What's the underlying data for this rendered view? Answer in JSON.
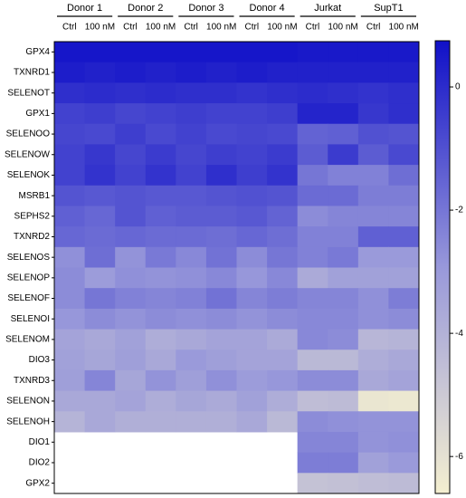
{
  "chart_data": {
    "type": "heatmap",
    "groups": [
      "Donor 1",
      "Donor 2",
      "Donor 3",
      "Donor 4",
      "Jurkat",
      "SupT1"
    ],
    "columns": [
      "Ctrl",
      "100 nM",
      "Ctrl",
      "100 nM",
      "Ctrl",
      "100 nM",
      "Ctrl",
      "100 nM",
      "Ctrl",
      "100 nM",
      "Ctrl",
      "100 nM"
    ],
    "rows": [
      "GPX4",
      "TXNRD1",
      "SELENOT",
      "GPX1",
      "SELENOO",
      "SELENOW",
      "SELENOK",
      "MSRB1",
      "SEPHS2",
      "TXNRD2",
      "SELENOS",
      "SELENOP",
      "SELENOF",
      "SELENOI",
      "SELENOM",
      "DIO3",
      "TXNRD3",
      "SELENON",
      "SELENOH",
      "DIO1",
      "DIO2",
      "GPX2"
    ],
    "values": [
      [
        0.6,
        0.6,
        0.6,
        0.6,
        0.6,
        0.6,
        0.6,
        0.6,
        0.5,
        0.5,
        0.5,
        0.5
      ],
      [
        0.4,
        0.3,
        0.4,
        0.3,
        0.4,
        0.3,
        0.4,
        0.3,
        0.3,
        0.3,
        0.3,
        0.3
      ],
      [
        -0.1,
        0.0,
        -0.1,
        0.0,
        -0.1,
        -0.1,
        -0.2,
        -0.1,
        0.0,
        -0.1,
        -0.2,
        -0.1
      ],
      [
        -0.6,
        -0.5,
        -0.7,
        -0.6,
        -0.5,
        -0.6,
        -0.6,
        -0.5,
        0.2,
        0.2,
        -0.3,
        -0.1
      ],
      [
        -0.7,
        -0.8,
        -0.5,
        -0.8,
        -0.6,
        -0.8,
        -0.7,
        -0.8,
        -1.5,
        -1.4,
        -1.0,
        -1.1
      ],
      [
        -0.6,
        -0.3,
        -0.7,
        -0.4,
        -0.7,
        -0.5,
        -0.6,
        -0.4,
        -1.3,
        -0.4,
        -1.3,
        -0.8
      ],
      [
        -0.6,
        -0.2,
        -0.6,
        -0.2,
        -0.6,
        -0.1,
        -0.5,
        -0.2,
        -2.0,
        -2.3,
        -2.3,
        -1.8
      ],
      [
        -1.1,
        -1.2,
        -1.1,
        -1.2,
        -1.2,
        -1.1,
        -1.0,
        -1.1,
        -1.7,
        -1.7,
        -2.2,
        -2.2
      ],
      [
        -1.4,
        -1.6,
        -1.1,
        -1.4,
        -1.3,
        -1.3,
        -1.2,
        -1.5,
        -2.6,
        -2.4,
        -2.4,
        -2.4
      ],
      [
        -1.6,
        -1.7,
        -1.6,
        -1.7,
        -1.7,
        -1.8,
        -1.6,
        -1.8,
        -2.3,
        -2.3,
        -1.4,
        -1.4
      ],
      [
        -2.7,
        -1.8,
        -2.8,
        -2.1,
        -2.5,
        -1.9,
        -2.6,
        -2.0,
        -2.3,
        -2.1,
        -3.0,
        -3.0
      ],
      [
        -2.6,
        -3.1,
        -2.7,
        -2.8,
        -2.7,
        -2.5,
        -2.9,
        -2.5,
        -3.7,
        -3.3,
        -3.3,
        -3.3
      ],
      [
        -2.6,
        -2.0,
        -2.3,
        -2.4,
        -2.3,
        -1.9,
        -2.4,
        -2.2,
        -2.4,
        -2.4,
        -2.7,
        -2.2
      ],
      [
        -2.9,
        -2.6,
        -2.8,
        -2.6,
        -2.7,
        -2.6,
        -2.8,
        -2.6,
        -2.5,
        -2.5,
        -2.7,
        -2.6
      ],
      [
        -3.4,
        -3.6,
        -3.3,
        -3.8,
        -3.6,
        -3.4,
        -3.4,
        -3.7,
        -2.5,
        -2.6,
        -4.2,
        -4.1
      ],
      [
        -3.3,
        -3.5,
        -3.2,
        -3.6,
        -3.0,
        -3.2,
        -3.4,
        -3.4,
        -4.3,
        -4.3,
        -3.8,
        -3.6
      ],
      [
        -3.2,
        -2.4,
        -3.5,
        -2.8,
        -3.2,
        -2.7,
        -3.1,
        -2.9,
        -2.6,
        -2.6,
        -3.6,
        -3.4
      ],
      [
        -3.6,
        -3.6,
        -3.4,
        -3.8,
        -3.5,
        -3.7,
        -3.3,
        -3.8,
        -4.5,
        -4.4,
        -6.2,
        -6.3
      ],
      [
        -4.1,
        -3.6,
        -3.9,
        -3.9,
        -3.9,
        -3.9,
        -3.6,
        -4.3,
        -2.6,
        -2.7,
        -2.8,
        -2.8
      ],
      [
        null,
        null,
        null,
        null,
        null,
        null,
        null,
        null,
        -2.4,
        -2.4,
        -2.8,
        -2.7
      ],
      [
        null,
        null,
        null,
        null,
        null,
        null,
        null,
        null,
        -2.2,
        -2.2,
        -3.3,
        -3.0
      ],
      [
        null,
        null,
        null,
        null,
        null,
        null,
        null,
        null,
        -4.7,
        -4.6,
        -4.5,
        -4.4
      ]
    ],
    "zlim": [
      -6.6,
      0.75
    ],
    "zticks": [
      0,
      -2,
      -4,
      -6
    ],
    "colormap": [
      "#f4efd0",
      "#9898da",
      "#1010c8"
    ]
  }
}
